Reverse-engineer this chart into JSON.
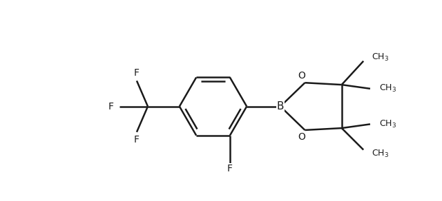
{
  "background_color": "#ffffff",
  "line_color": "#1a1a1a",
  "line_width": 1.8,
  "font_size": 10,
  "figsize": [
    6.4,
    2.92
  ],
  "dpi": 100,
  "xlim": [
    -3.8,
    7.2
  ],
  "ylim": [
    -2.2,
    2.8
  ]
}
